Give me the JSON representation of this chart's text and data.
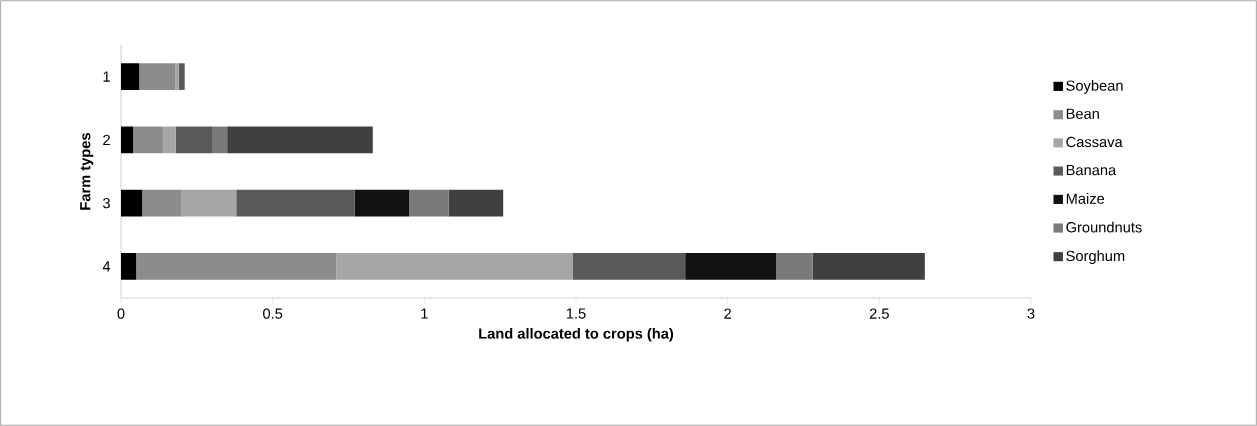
{
  "chart_data": {
    "type": "bar",
    "orientation": "horizontal",
    "stacked": true,
    "xlabel": "Land allocated to crops (ha)",
    "ylabel": "Farm types",
    "categories": [
      "1",
      "2",
      "3",
      "4"
    ],
    "series": [
      {
        "name": "Soybean",
        "color": "#000000",
        "values": [
          0.06,
          0.04,
          0.07,
          0.05
        ]
      },
      {
        "name": "Bean",
        "color": "#8c8c8c",
        "values": [
          0.12,
          0.1,
          0.13,
          0.66
        ]
      },
      {
        "name": "Cassava",
        "color": "#a6a6a6",
        "values": [
          0.01,
          0.04,
          0.18,
          0.78
        ]
      },
      {
        "name": "Banana",
        "color": "#5a5a5a",
        "values": [
          0.02,
          0.12,
          0.39,
          0.37
        ]
      },
      {
        "name": "Maize",
        "color": "#111111",
        "values": [
          0,
          0,
          0.18,
          0.3
        ]
      },
      {
        "name": "Groundnuts",
        "color": "#7a7a7a",
        "values": [
          0,
          0.05,
          0.13,
          0.12
        ]
      },
      {
        "name": "Sorghum",
        "color": "#404040",
        "values": [
          0,
          0.48,
          0.18,
          0.37
        ]
      }
    ],
    "xlim": [
      0,
      3
    ],
    "xticks": [
      0,
      0.5,
      1,
      1.5,
      2,
      2.5,
      3
    ],
    "legend": "right"
  }
}
